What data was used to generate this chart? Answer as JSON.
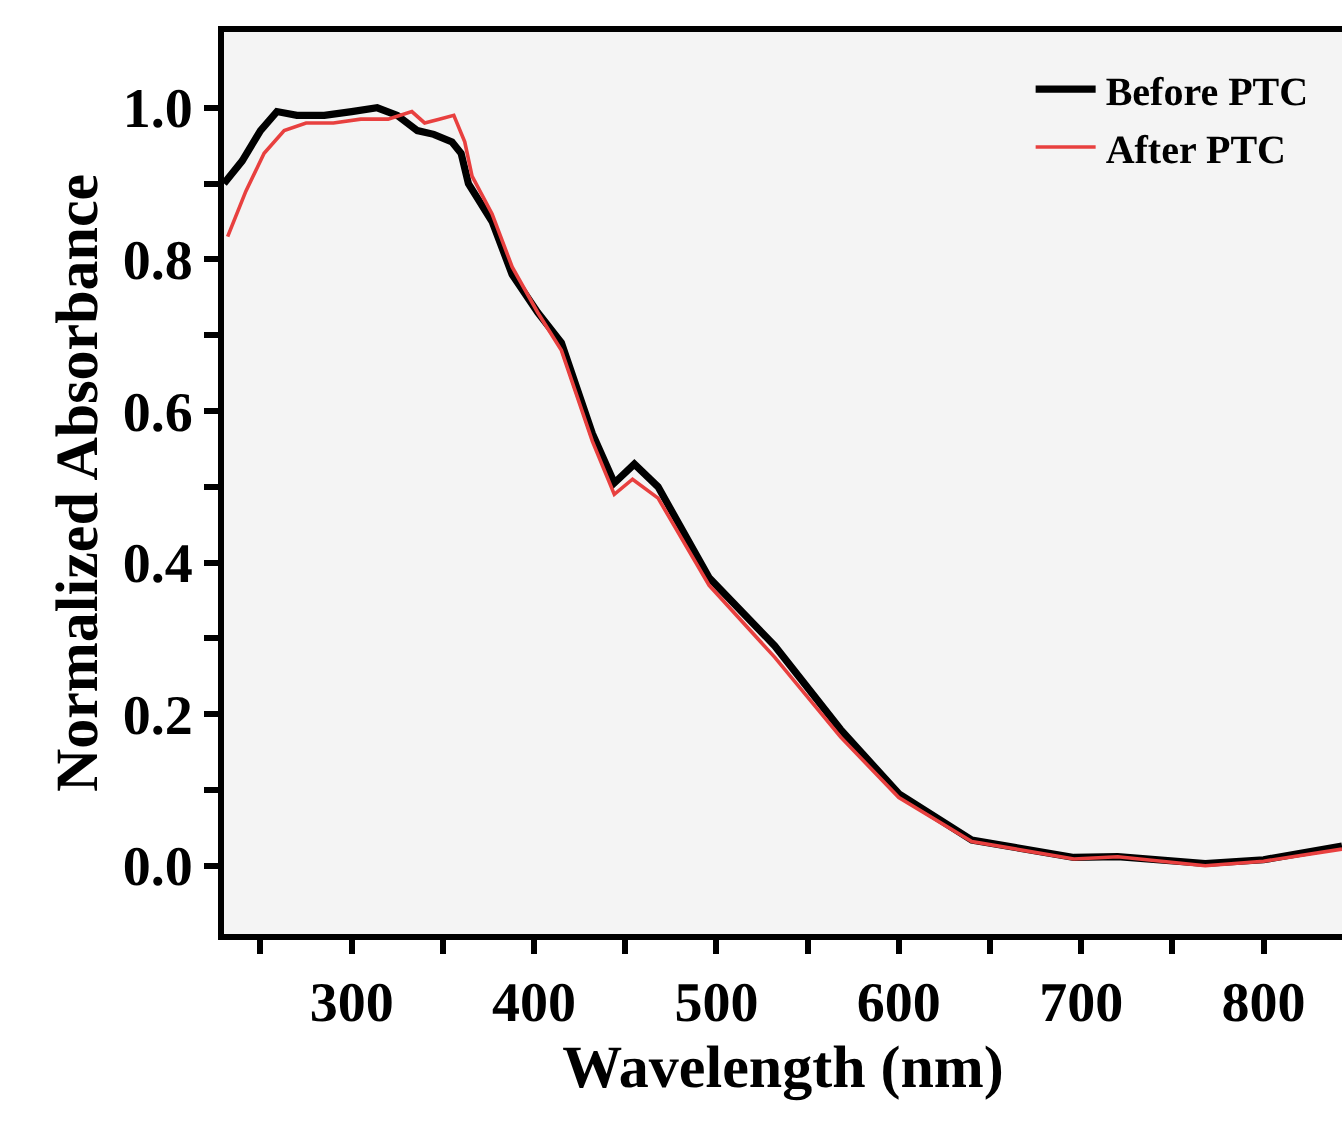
{
  "chart_data": {
    "type": "line",
    "xlabel": "Wavelength (nm)",
    "ylabel": "Normalized Absorbance",
    "xlim": [
      230,
      843
    ],
    "ylim": [
      -0.09,
      1.1
    ],
    "xticks": [
      {
        "value": 250,
        "label": null
      },
      300,
      {
        "value": 350,
        "label": null
      },
      400,
      {
        "value": 450,
        "label": null
      },
      500,
      {
        "value": 550,
        "label": null
      },
      600,
      {
        "value": 650,
        "label": null
      },
      700,
      {
        "value": 750,
        "label": null
      },
      800
    ],
    "yticks": [
      {
        "value": 0,
        "label": "0.0"
      },
      {
        "value": 0.1,
        "label": null
      },
      {
        "value": 0.2,
        "label": "0.2"
      },
      {
        "value": 0.3,
        "label": null
      },
      {
        "value": 0.4,
        "label": "0.4"
      },
      {
        "value": 0.5,
        "label": null
      },
      {
        "value": 0.6,
        "label": "0.6"
      },
      {
        "value": 0.7,
        "label": null
      },
      {
        "value": 0.8,
        "label": "0.8"
      },
      {
        "value": 0.9,
        "label": null
      },
      {
        "value": 1,
        "label": "1.0"
      }
    ],
    "grid": false,
    "legend": "top right",
    "line_style": "solid",
    "marker": "none",
    "series": [
      {
        "name": "Before PTC",
        "color": "#000000",
        "x": [
          230,
          240,
          250,
          259,
          270,
          285,
          300,
          314,
          325,
          336,
          345,
          355,
          360,
          364,
          377,
          388,
          402,
          415,
          432,
          444,
          455,
          468,
          496,
          532,
          568,
          600,
          640,
          696,
          720,
          768,
          800,
          843
        ],
        "values": [
          0.9,
          0.93,
          0.97,
          0.995,
          0.99,
          0.99,
          0.995,
          1.0,
          0.99,
          0.97,
          0.965,
          0.955,
          0.94,
          0.9,
          0.85,
          0.78,
          0.73,
          0.69,
          0.57,
          0.505,
          0.53,
          0.5,
          0.38,
          0.29,
          0.18,
          0.095,
          0.034,
          0.011,
          0.012,
          0.003,
          0.008,
          0.026
        ]
      },
      {
        "name": "After PTC",
        "color": "#e8403f",
        "x": [
          232,
          242,
          252,
          263,
          275,
          290,
          305,
          320,
          333,
          340,
          348,
          356,
          362,
          366,
          377,
          388,
          402,
          415,
          432,
          444,
          454,
          468,
          496,
          532,
          568,
          600,
          640,
          696,
          720,
          768,
          800,
          843
        ],
        "values": [
          0.83,
          0.89,
          0.94,
          0.97,
          0.98,
          0.98,
          0.985,
          0.985,
          0.995,
          0.98,
          0.985,
          0.99,
          0.955,
          0.91,
          0.86,
          0.79,
          0.73,
          0.68,
          0.56,
          0.49,
          0.51,
          0.485,
          0.37,
          0.275,
          0.17,
          0.09,
          0.032,
          0.009,
          0.012,
          0.0,
          0.006,
          0.022
        ]
      }
    ]
  }
}
